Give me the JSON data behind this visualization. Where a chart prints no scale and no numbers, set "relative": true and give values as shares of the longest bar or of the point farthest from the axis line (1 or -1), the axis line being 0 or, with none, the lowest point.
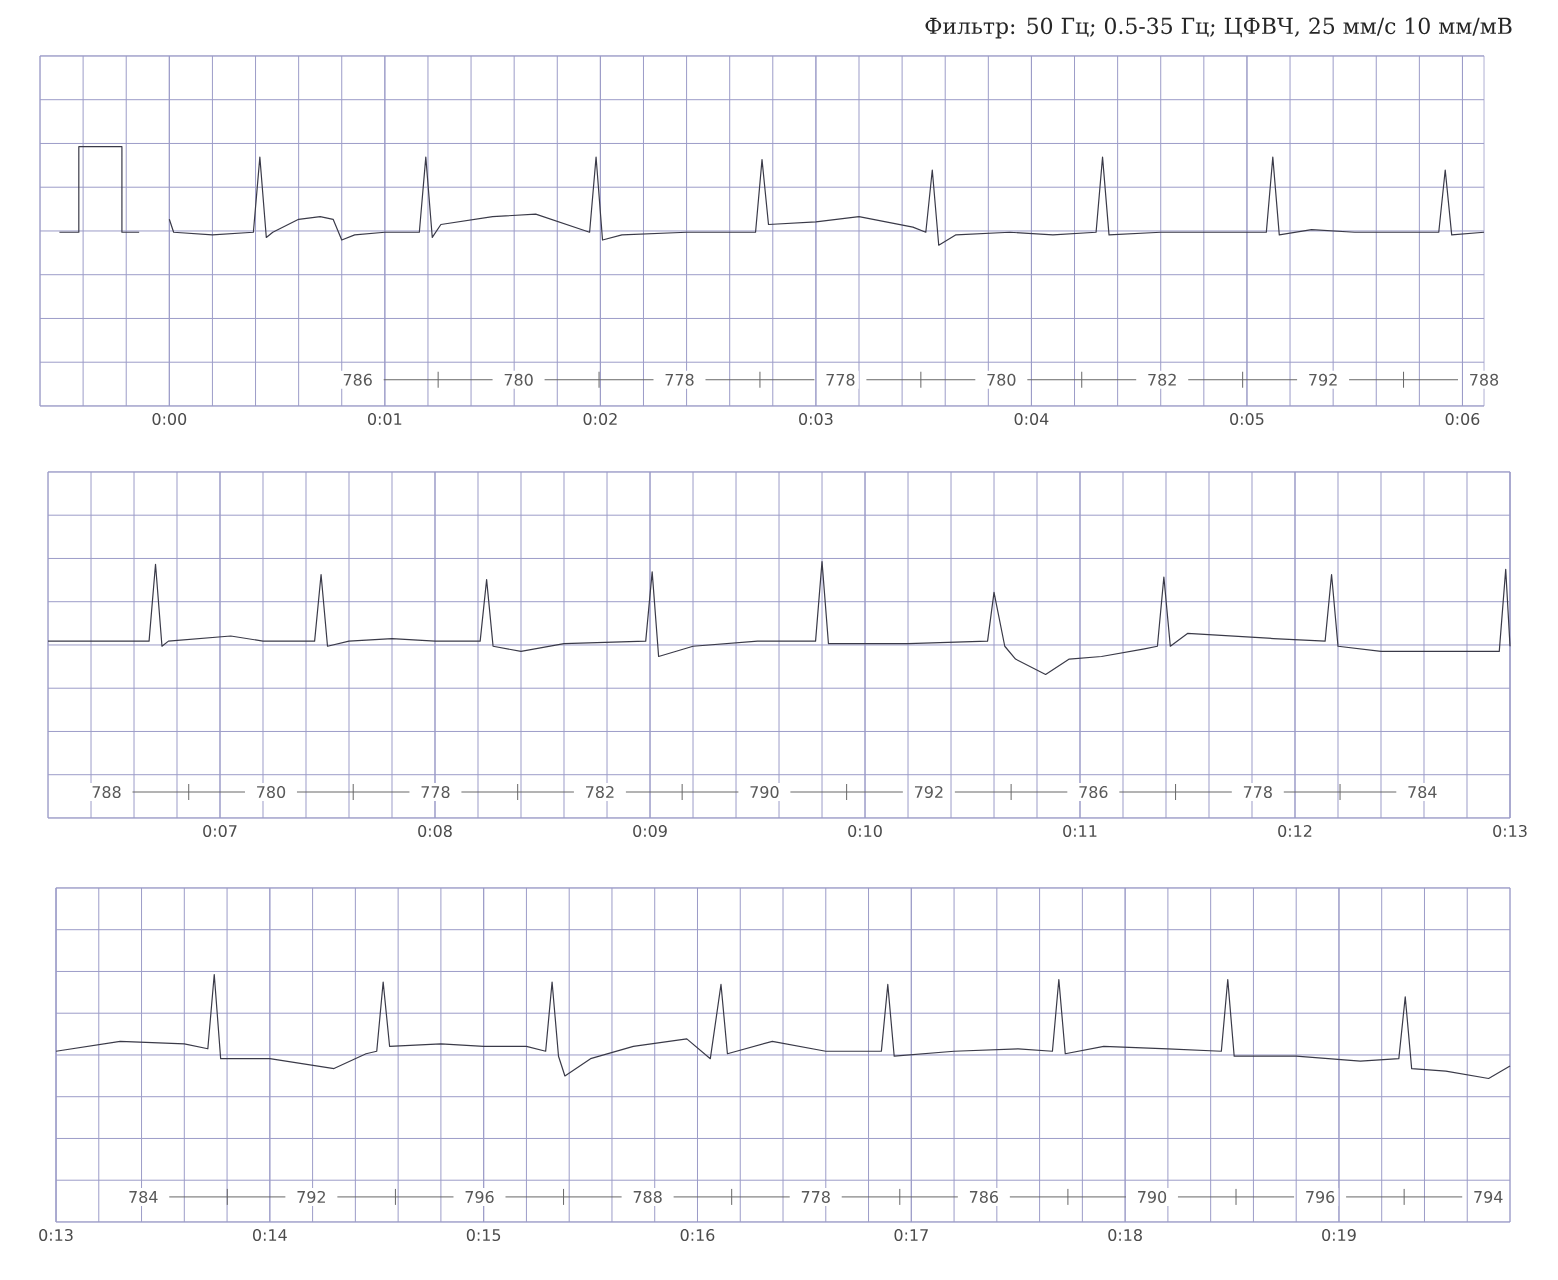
{
  "chart_data": [
    {
      "type": "line",
      "title": "Фильтр: 50 Гц; 0.5-35 Гц; ЦФВЧ, 25 мм/с 10 мм/мВ",
      "relative": true,
      "grid": true,
      "tick_labels": "x",
      "color": "#3a3a48",
      "xlim": [
        -0.6,
        6.1
      ],
      "xticks": [
        {
          "value": 0,
          "label": "0:00"
        },
        {
          "value": 1,
          "label": "0:01"
        },
        {
          "value": 2,
          "label": "0:02"
        },
        {
          "value": 3,
          "label": "0:03"
        },
        {
          "value": 4,
          "label": "0:04"
        },
        {
          "value": 5,
          "label": "0:05"
        },
        {
          "value": 6,
          "label": "0:06"
        }
      ],
      "x": [
        -0.51,
        -0.42,
        -0.42,
        -0.22,
        -0.22,
        -0.14,
        -0.07,
        0.0,
        0.02,
        0.2,
        0.39,
        0.42,
        0.45,
        0.48,
        0.6,
        0.7,
        0.76,
        0.8,
        0.86,
        1.0,
        1.16,
        1.19,
        1.22,
        1.26,
        1.5,
        1.7,
        1.95,
        1.98,
        2.01,
        2.1,
        2.4,
        2.6,
        2.72,
        2.75,
        2.78,
        3.0,
        3.2,
        3.45,
        3.51,
        3.54,
        3.57,
        3.65,
        3.9,
        4.1,
        4.3,
        4.33,
        4.36,
        4.6,
        5.09,
        5.12,
        5.15,
        5.3,
        5.5,
        5.89,
        5.92,
        5.95,
        6.1
      ],
      "values": [
        0.67,
        0.67,
        1.0,
        1.0,
        0.67,
        0.67,
        null,
        0.72,
        0.67,
        0.66,
        0.67,
        0.96,
        0.65,
        0.67,
        0.72,
        0.73,
        0.72,
        0.64,
        0.66,
        0.67,
        0.67,
        0.96,
        0.65,
        0.7,
        0.73,
        0.74,
        0.67,
        0.96,
        0.64,
        0.66,
        0.67,
        0.67,
        0.67,
        0.95,
        0.7,
        0.71,
        0.73,
        0.69,
        0.67,
        0.91,
        0.62,
        0.66,
        0.67,
        0.66,
        0.67,
        0.96,
        0.66,
        0.67,
        0.67,
        0.96,
        0.66,
        0.68,
        0.67,
        0.67,
        0.91,
        0.66,
        0.67
      ],
      "annotations": [
        "786",
        "780",
        "778",
        "778",
        "780",
        "782",
        "792",
        "788"
      ]
    },
    {
      "type": "line",
      "relative": true,
      "grid": true,
      "tick_labels": "x",
      "color": "#3a3a48",
      "xlim": [
        6.2,
        13.0
      ],
      "xticks": [
        {
          "value": 7,
          "label": "0:07"
        },
        {
          "value": 8,
          "label": "0:08"
        },
        {
          "value": 9,
          "label": "0:09"
        },
        {
          "value": 10,
          "label": "0:10"
        },
        {
          "value": 11,
          "label": "0:11"
        },
        {
          "value": 12,
          "label": "0:12"
        },
        {
          "value": 13,
          "label": "0:13"
        }
      ],
      "x": [
        6.2,
        6.67,
        6.7,
        6.73,
        6.76,
        7.05,
        7.2,
        7.44,
        7.47,
        7.5,
        7.6,
        7.8,
        8.0,
        8.21,
        8.24,
        8.27,
        8.4,
        8.6,
        8.98,
        9.01,
        9.04,
        9.2,
        9.5,
        9.77,
        9.8,
        9.83,
        10.2,
        10.57,
        10.6,
        10.65,
        10.7,
        10.84,
        10.95,
        11.1,
        11.3,
        11.36,
        11.39,
        11.42,
        11.5,
        11.9,
        12.14,
        12.17,
        12.2,
        12.4,
        12.7,
        12.95,
        12.98,
        13.0
      ],
      "values": [
        0.69,
        0.69,
        0.99,
        0.67,
        0.69,
        0.71,
        0.69,
        0.69,
        0.95,
        0.67,
        0.69,
        0.7,
        0.69,
        0.69,
        0.93,
        0.67,
        0.65,
        0.68,
        0.69,
        0.96,
        0.63,
        0.67,
        0.69,
        0.69,
        1.0,
        0.68,
        0.68,
        0.69,
        0.88,
        0.67,
        0.62,
        0.56,
        0.62,
        0.63,
        0.66,
        0.67,
        0.94,
        0.67,
        0.72,
        0.7,
        0.69,
        0.95,
        0.67,
        0.65,
        0.65,
        0.65,
        0.97,
        0.67
      ],
      "annotations": [
        "788",
        "780",
        "778",
        "782",
        "790",
        "792",
        "786",
        "778",
        "784"
      ]
    },
    {
      "type": "line",
      "relative": true,
      "grid": true,
      "tick_labels": "x",
      "color": "#3a3a48",
      "xlim": [
        13.0,
        19.8
      ],
      "xticks": [
        {
          "value": 13,
          "label": "0:13"
        },
        {
          "value": 14,
          "label": "0:14"
        },
        {
          "value": 15,
          "label": "0:15"
        },
        {
          "value": 16,
          "label": "0:16"
        },
        {
          "value": 17,
          "label": "0:17"
        },
        {
          "value": 18,
          "label": "0:18"
        },
        {
          "value": 19,
          "label": "0:19"
        }
      ],
      "x": [
        13.0,
        13.3,
        13.6,
        13.71,
        13.74,
        13.77,
        14.0,
        14.3,
        14.45,
        14.5,
        14.53,
        14.56,
        14.8,
        15.0,
        15.2,
        15.29,
        15.32,
        15.35,
        15.38,
        15.5,
        15.7,
        15.95,
        16.06,
        16.11,
        16.14,
        16.35,
        16.6,
        16.86,
        16.89,
        16.92,
        17.2,
        17.5,
        17.66,
        17.69,
        17.72,
        17.9,
        18.2,
        18.45,
        18.48,
        18.51,
        18.8,
        19.1,
        19.28,
        19.31,
        19.34,
        19.5,
        19.7,
        19.8
      ],
      "values": [
        0.69,
        0.73,
        0.72,
        0.7,
        1.0,
        0.66,
        0.66,
        0.62,
        0.68,
        0.69,
        0.97,
        0.71,
        0.72,
        0.71,
        0.71,
        0.69,
        0.97,
        0.67,
        0.59,
        0.66,
        0.71,
        0.74,
        0.66,
        0.96,
        0.68,
        0.73,
        0.69,
        0.69,
        0.96,
        0.67,
        0.69,
        0.7,
        0.69,
        0.98,
        0.68,
        0.71,
        0.7,
        0.69,
        0.98,
        0.67,
        0.67,
        0.65,
        0.66,
        0.91,
        0.62,
        0.61,
        0.58,
        0.63
      ],
      "annotations": [
        "784",
        "792",
        "796",
        "788",
        "778",
        "786",
        "790",
        "796",
        "794"
      ]
    }
  ]
}
